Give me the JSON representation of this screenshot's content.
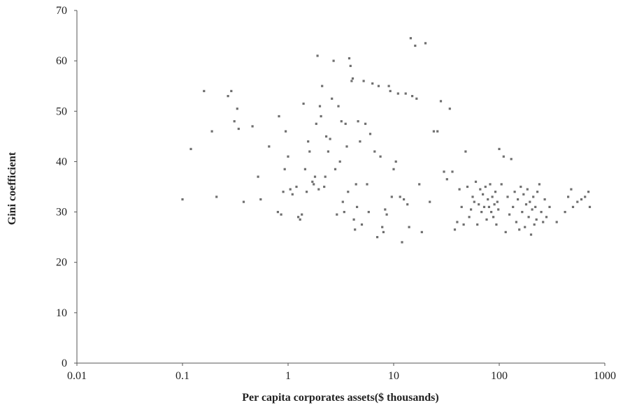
{
  "chart_data": {
    "type": "scatter",
    "title": "",
    "xlabel": "Per capita corporates assets($ thousands)",
    "ylabel": "Gini coefficient",
    "x_scale": "log",
    "xlim": [
      0.01,
      1000
    ],
    "ylim": [
      0,
      70
    ],
    "x_ticks": [
      "0.01",
      "0.1",
      "1",
      "10",
      "100",
      "1000"
    ],
    "y_ticks": [
      "0",
      "10",
      "20",
      "30",
      "40",
      "50",
      "60",
      "70"
    ],
    "grid": false,
    "legend": "none",
    "marker_color": "#6f6f6f",
    "points": [
      [
        0.1,
        32.5
      ],
      [
        0.12,
        42.5
      ],
      [
        0.16,
        54
      ],
      [
        0.19,
        46
      ],
      [
        0.21,
        33
      ],
      [
        0.27,
        53
      ],
      [
        0.29,
        54
      ],
      [
        0.31,
        48
      ],
      [
        0.33,
        50.5
      ],
      [
        0.34,
        46.5
      ],
      [
        0.38,
        32
      ],
      [
        0.46,
        47
      ],
      [
        0.52,
        37
      ],
      [
        0.55,
        32.5
      ],
      [
        0.66,
        43
      ],
      [
        0.8,
        30
      ],
      [
        0.82,
        49
      ],
      [
        0.86,
        29.5
      ],
      [
        0.9,
        34
      ],
      [
        0.93,
        38.5
      ],
      [
        0.95,
        46
      ],
      [
        1.0,
        41
      ],
      [
        1.05,
        34.5
      ],
      [
        1.1,
        33.5
      ],
      [
        1.2,
        35
      ],
      [
        1.25,
        29
      ],
      [
        1.3,
        28.5
      ],
      [
        1.35,
        29.5
      ],
      [
        1.4,
        51.5
      ],
      [
        1.45,
        38.5
      ],
      [
        1.5,
        34
      ],
      [
        1.55,
        44
      ],
      [
        1.6,
        42
      ],
      [
        1.7,
        36
      ],
      [
        1.75,
        35.5
      ],
      [
        1.8,
        37
      ],
      [
        1.85,
        47.5
      ],
      [
        1.9,
        61
      ],
      [
        1.95,
        34.5
      ],
      [
        2.0,
        51
      ],
      [
        2.05,
        49
      ],
      [
        2.1,
        55
      ],
      [
        2.2,
        35
      ],
      [
        2.25,
        37
      ],
      [
        2.3,
        45
      ],
      [
        2.4,
        42
      ],
      [
        2.5,
        44.5
      ],
      [
        2.6,
        52.5
      ],
      [
        2.7,
        60
      ],
      [
        2.8,
        38.5
      ],
      [
        2.9,
        29.5
      ],
      [
        3.0,
        51
      ],
      [
        3.1,
        40
      ],
      [
        3.2,
        48
      ],
      [
        3.3,
        32
      ],
      [
        3.4,
        30
      ],
      [
        3.5,
        47.5
      ],
      [
        3.6,
        43
      ],
      [
        3.7,
        34
      ],
      [
        3.8,
        60.5
      ],
      [
        3.9,
        59
      ],
      [
        4.0,
        56
      ],
      [
        4.1,
        56.5
      ],
      [
        4.2,
        28.5
      ],
      [
        4.3,
        26.5
      ],
      [
        4.4,
        35.5
      ],
      [
        4.5,
        31
      ],
      [
        4.6,
        48
      ],
      [
        4.8,
        44
      ],
      [
        5.0,
        27.5
      ],
      [
        5.2,
        56
      ],
      [
        5.4,
        47.5
      ],
      [
        5.6,
        35.5
      ],
      [
        5.8,
        30
      ],
      [
        6.0,
        45.5
      ],
      [
        6.3,
        55.5
      ],
      [
        6.6,
        42
      ],
      [
        7.0,
        25
      ],
      [
        7.2,
        55
      ],
      [
        7.5,
        41
      ],
      [
        7.8,
        27
      ],
      [
        8.0,
        26
      ],
      [
        8.3,
        30.5
      ],
      [
        8.6,
        29.5
      ],
      [
        9.0,
        55
      ],
      [
        9.3,
        54
      ],
      [
        9.6,
        33
      ],
      [
        10.0,
        38.5
      ],
      [
        10.5,
        40
      ],
      [
        11.0,
        53.5
      ],
      [
        11.5,
        33
      ],
      [
        12.0,
        24
      ],
      [
        12.5,
        32.5
      ],
      [
        13.0,
        53.5
      ],
      [
        13.5,
        31.5
      ],
      [
        14.0,
        27
      ],
      [
        14.5,
        64.5
      ],
      [
        15.0,
        53
      ],
      [
        16.0,
        63
      ],
      [
        16.5,
        52.5
      ],
      [
        17.5,
        35.5
      ],
      [
        18.5,
        26
      ],
      [
        20.0,
        63.5
      ],
      [
        22.0,
        32
      ],
      [
        24.0,
        46
      ],
      [
        26.0,
        46
      ],
      [
        28.0,
        52
      ],
      [
        30.0,
        38
      ],
      [
        32.0,
        36.5
      ],
      [
        34.0,
        50.5
      ],
      [
        36.0,
        38
      ],
      [
        38.0,
        26.5
      ],
      [
        40.0,
        28
      ],
      [
        42.0,
        34.5
      ],
      [
        44.0,
        31
      ],
      [
        46.0,
        27.5
      ],
      [
        48.0,
        42
      ],
      [
        50.0,
        35
      ],
      [
        52.0,
        29
      ],
      [
        54.0,
        30.5
      ],
      [
        56.0,
        33
      ],
      [
        58.0,
        32
      ],
      [
        60.0,
        36
      ],
      [
        62.0,
        27.5
      ],
      [
        64.0,
        31.5
      ],
      [
        66.0,
        34.5
      ],
      [
        68.0,
        30
      ],
      [
        70.0,
        33.5
      ],
      [
        72.0,
        31
      ],
      [
        74.0,
        35
      ],
      [
        76.0,
        28.5
      ],
      [
        78.0,
        32.5
      ],
      [
        80.0,
        31
      ],
      [
        82.0,
        35.5
      ],
      [
        84.0,
        30
      ],
      [
        86.0,
        33
      ],
      [
        88.0,
        29
      ],
      [
        90.0,
        31.5
      ],
      [
        92.0,
        34
      ],
      [
        94.0,
        27.5
      ],
      [
        96.0,
        32
      ],
      [
        98.0,
        30.5
      ],
      [
        100.0,
        42.5
      ],
      [
        105.0,
        35.5
      ],
      [
        110.0,
        41
      ],
      [
        115.0,
        26
      ],
      [
        120.0,
        33
      ],
      [
        125.0,
        29.5
      ],
      [
        130.0,
        40.5
      ],
      [
        135.0,
        31
      ],
      [
        140.0,
        34
      ],
      [
        145.0,
        28
      ],
      [
        150.0,
        32.5
      ],
      [
        155.0,
        26.5
      ],
      [
        160.0,
        35
      ],
      [
        165.0,
        30
      ],
      [
        170.0,
        33.5
      ],
      [
        175.0,
        27
      ],
      [
        180.0,
        31.5
      ],
      [
        185.0,
        34.5
      ],
      [
        190.0,
        29
      ],
      [
        195.0,
        32
      ],
      [
        200.0,
        25.5
      ],
      [
        205.0,
        30.5
      ],
      [
        210.0,
        33
      ],
      [
        215.0,
        27.5
      ],
      [
        220.0,
        31
      ],
      [
        225.0,
        28.5
      ],
      [
        230.0,
        34
      ],
      [
        240.0,
        35.5
      ],
      [
        250.0,
        30
      ],
      [
        260.0,
        28
      ],
      [
        270.0,
        32.5
      ],
      [
        280.0,
        29
      ],
      [
        300.0,
        31
      ],
      [
        350.0,
        28
      ],
      [
        420.0,
        30
      ],
      [
        450.0,
        33
      ],
      [
        480.0,
        34.5
      ],
      [
        500.0,
        31
      ],
      [
        550.0,
        32
      ],
      [
        600.0,
        32.5
      ],
      [
        650.0,
        33
      ],
      [
        700.0,
        34
      ],
      [
        720.0,
        31
      ]
    ]
  }
}
